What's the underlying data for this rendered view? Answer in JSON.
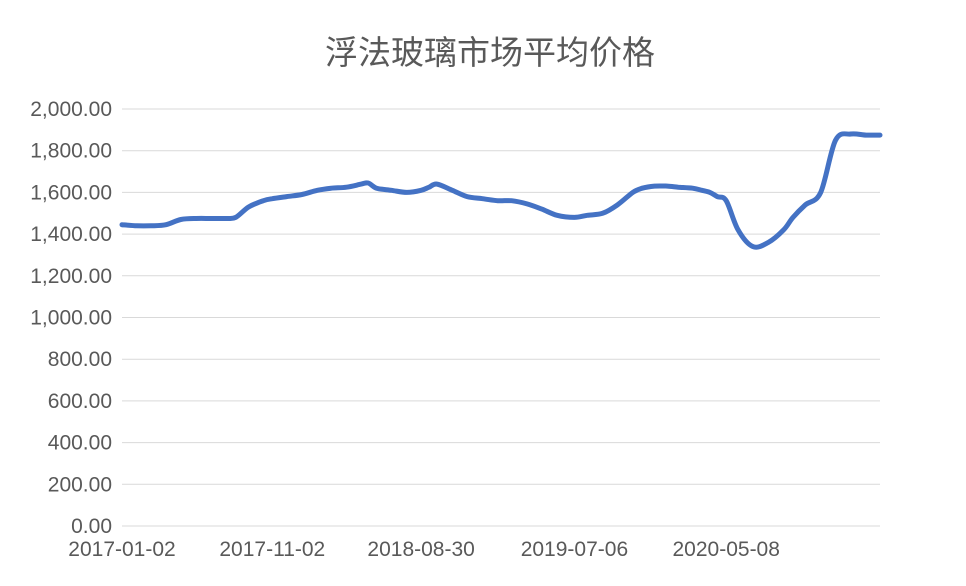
{
  "chart_data": {
    "type": "line",
    "title": "浮法玻璃市场平均价格",
    "xlabel": "",
    "ylabel": "",
    "ylim": [
      0,
      2000
    ],
    "ytick_labels": [
      "0.00",
      "200.00",
      "400.00",
      "600.00",
      "800.00",
      "1,000.00",
      "1,200.00",
      "1,400.00",
      "1,600.00",
      "1,800.00",
      "2,000.00"
    ],
    "xtick_labels": [
      "2017-01-02",
      "2017-11-02",
      "2018-08-30",
      "2019-07-06",
      "2020-05-08"
    ],
    "xlim": [
      "2017-01-02",
      "2021-03-15"
    ],
    "grid": true,
    "legend": "none",
    "colors": {
      "line": "#4472c4",
      "grid": "#d9d9d9",
      "text": "#595959"
    },
    "series": [
      {
        "x": [
          "2017-01-02",
          "2017-02-01",
          "2017-03-01",
          "2017-04-01",
          "2017-05-01",
          "2017-06-01",
          "2017-07-01",
          "2017-08-01",
          "2017-08-20",
          "2017-09-15",
          "2017-10-15",
          "2017-11-02",
          "2017-12-01",
          "2018-01-01",
          "2018-02-01",
          "2018-03-01",
          "2018-04-01",
          "2018-05-01",
          "2018-05-15",
          "2018-06-01",
          "2018-07-01",
          "2018-08-01",
          "2018-08-30",
          "2018-09-15",
          "2018-10-01",
          "2018-11-01",
          "2018-12-01",
          "2019-01-01",
          "2019-02-01",
          "2019-03-01",
          "2019-04-01",
          "2019-05-01",
          "2019-06-01",
          "2019-07-06",
          "2019-08-01",
          "2019-09-01",
          "2019-10-01",
          "2019-11-01",
          "2019-11-20",
          "2019-12-15",
          "2020-01-10",
          "2020-02-01",
          "2020-03-01",
          "2020-03-20",
          "2020-04-05",
          "2020-04-20",
          "2020-05-08",
          "2020-06-01",
          "2020-07-01",
          "2020-08-01",
          "2020-09-01",
          "2020-09-20",
          "2020-10-15",
          "2020-11-15",
          "2020-12-15",
          "2021-01-15",
          "2021-02-15",
          "2021-03-15"
        ],
        "values": [
          1445,
          1440,
          1440,
          1445,
          1470,
          1475,
          1475,
          1475,
          1480,
          1530,
          1560,
          1570,
          1580,
          1590,
          1610,
          1620,
          1625,
          1640,
          1645,
          1620,
          1610,
          1600,
          1610,
          1625,
          1640,
          1610,
          1580,
          1570,
          1560,
          1560,
          1545,
          1520,
          1490,
          1480,
          1490,
          1500,
          1540,
          1600,
          1620,
          1630,
          1630,
          1625,
          1620,
          1610,
          1600,
          1580,
          1560,
          1420,
          1340,
          1360,
          1420,
          1480,
          1540,
          1600,
          1850,
          1880,
          1875,
          1875
        ]
      }
    ]
  }
}
